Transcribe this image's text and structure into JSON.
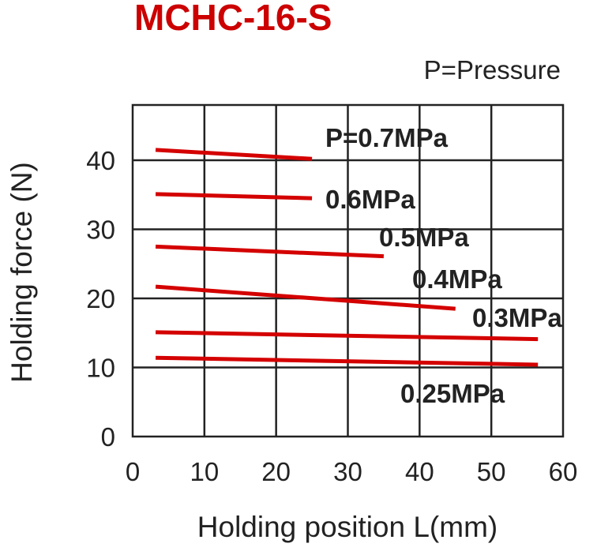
{
  "chart_data": {
    "type": "line",
    "title": "MCHC-16-S",
    "note": "P=Pressure",
    "xlabel": "Holding position L(mm)",
    "ylabel": "Holding force (N)",
    "xlim": [
      0,
      60
    ],
    "ylim": [
      0,
      48
    ],
    "xticks": [
      0,
      10,
      20,
      30,
      40,
      50,
      60
    ],
    "yticks": [
      0,
      10,
      20,
      30,
      40
    ],
    "grid": true,
    "line_color": "#d40000",
    "series": [
      {
        "name": "P=0.7MPa",
        "x": [
          3.2,
          25
        ],
        "y": [
          41.5,
          40.2
        ]
      },
      {
        "name": "0.6MPa",
        "x": [
          3.2,
          25
        ],
        "y": [
          35.1,
          34.5
        ]
      },
      {
        "name": "0.5MPa",
        "x": [
          3.2,
          35
        ],
        "y": [
          27.5,
          26.1
        ]
      },
      {
        "name": "0.4MPa",
        "x": [
          3.2,
          45
        ],
        "y": [
          21.7,
          18.5
        ]
      },
      {
        "name": "0.3MPa",
        "x": [
          3.2,
          56.5
        ],
        "y": [
          15.1,
          14.1
        ]
      },
      {
        "name": "0.25MPa",
        "x": [
          3.2,
          56.5
        ],
        "y": [
          11.4,
          10.4
        ]
      }
    ]
  }
}
